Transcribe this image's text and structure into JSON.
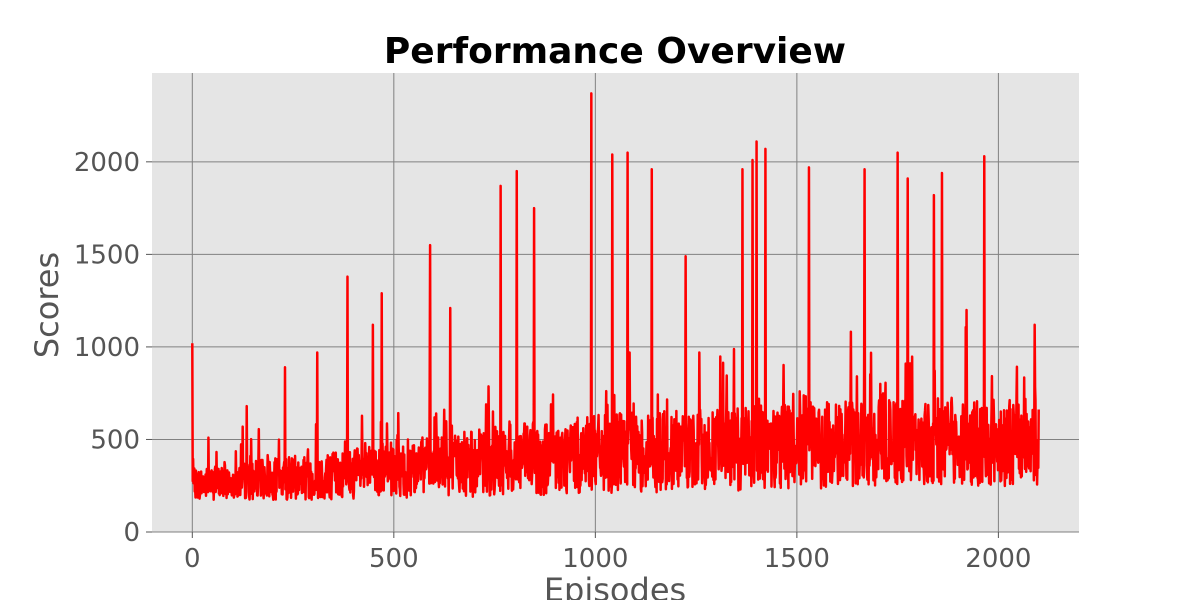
{
  "chart_data": {
    "type": "line",
    "title": "Performance Overview",
    "xlabel": "Episodes",
    "ylabel": "Scores",
    "xlim": [
      -100,
      2200
    ],
    "ylim": [
      0,
      2480
    ],
    "x_ticks": [
      0,
      500,
      1000,
      1500,
      2000
    ],
    "y_ticks": [
      0,
      500,
      1000,
      1500,
      2000
    ],
    "x_tick_labels": [
      "0",
      "500",
      "1000",
      "1500",
      "2000"
    ],
    "y_tick_labels": [
      "0",
      "500",
      "1000",
      "1500",
      "2000"
    ],
    "grid": true,
    "legend": "none",
    "colors": {
      "series": "#ff0000",
      "plot_bg": "#e5e5e5",
      "grid": "#808080"
    },
    "series": [
      {
        "x_start": 0,
        "x_end": 2100,
        "noise_seed": 7,
        "baseline": [
          [
            0,
            250
          ],
          [
            250,
            280
          ],
          [
            500,
            320
          ],
          [
            750,
            360
          ],
          [
            1000,
            400
          ],
          [
            1250,
            420
          ],
          [
            1500,
            440
          ],
          [
            1750,
            460
          ],
          [
            2100,
            470
          ]
        ],
        "noise_amplitude": [
          [
            0,
            120
          ],
          [
            400,
            200
          ],
          [
            800,
            280
          ],
          [
            1200,
            320
          ],
          [
            2100,
            350
          ]
        ],
        "values": [
          [
            0,
            1020
          ],
          [
            40,
            510
          ],
          [
            135,
            680
          ],
          [
            230,
            890
          ],
          [
            310,
            970
          ],
          [
            385,
            1380
          ],
          [
            448,
            1120
          ],
          [
            470,
            1290
          ],
          [
            590,
            1550
          ],
          [
            640,
            1210
          ],
          [
            765,
            1870
          ],
          [
            805,
            1950
          ],
          [
            848,
            1750
          ],
          [
            990,
            2370
          ],
          [
            1042,
            2040
          ],
          [
            1080,
            2050
          ],
          [
            1140,
            1960
          ],
          [
            1224,
            1490
          ],
          [
            1365,
            1960
          ],
          [
            1390,
            2010
          ],
          [
            1400,
            2110
          ],
          [
            1422,
            2070
          ],
          [
            1530,
            1970
          ],
          [
            1668,
            1960
          ],
          [
            1750,
            2050
          ],
          [
            1775,
            1910
          ],
          [
            1840,
            1820
          ],
          [
            1860,
            1940
          ],
          [
            1965,
            2030
          ],
          [
            2090,
            1120
          ]
        ]
      }
    ]
  }
}
